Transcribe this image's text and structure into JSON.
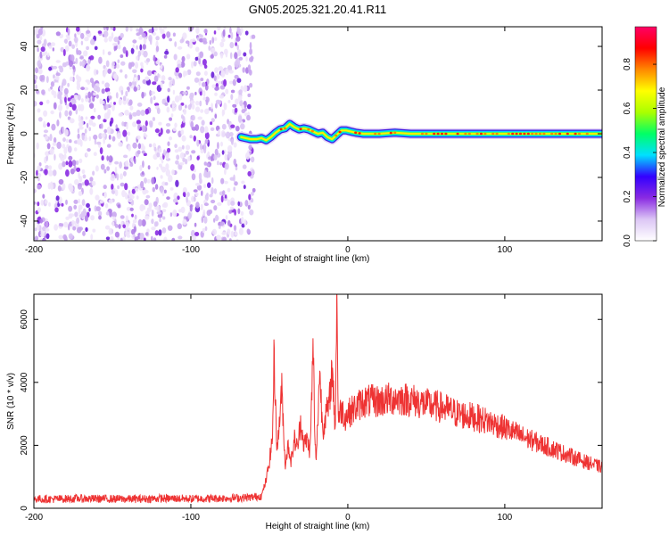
{
  "title": "GN05.2025.321.20.41.R11",
  "chart_data": [
    {
      "type": "heatmap",
      "xlabel": "Height of straight line (km)",
      "ylabel": "Frequency (Hz)",
      "xlim": [
        -200,
        162
      ],
      "ylim": [
        -49,
        49
      ],
      "x_ticks": [
        -200,
        -100,
        0,
        100
      ],
      "y_ticks": [
        -40,
        -20,
        0,
        20,
        40
      ],
      "noise_region_x": [
        -200,
        -63
      ],
      "signal_start_x": -68,
      "signal_track": {
        "x": [
          -68,
          -65,
          -62,
          -58,
          -55,
          -52,
          -49,
          -46,
          -43,
          -40,
          -37,
          -34,
          -31,
          -28,
          -25,
          -22,
          -19,
          -16,
          -13,
          -10,
          -7,
          -4,
          -1,
          2,
          5,
          10,
          20,
          30,
          40,
          60,
          80,
          100,
          120,
          140,
          162
        ],
        "y": [
          -1.5,
          -2,
          -2.5,
          -2.5,
          -2,
          -3,
          -1.5,
          0.5,
          2,
          2.5,
          4.5,
          3,
          2,
          2.5,
          2,
          1,
          0,
          0.5,
          -1.5,
          -2.5,
          -0.5,
          1.5,
          1.5,
          1,
          0.5,
          0,
          0,
          0.5,
          0,
          0,
          0,
          0,
          0,
          0,
          0
        ]
      },
      "colorbar": {
        "label": "Normalized spectral amplitude",
        "range": [
          0,
          0.97
        ],
        "ticks": [
          0.0,
          0.2,
          0.4,
          0.6,
          0.8
        ],
        "tick_labels": [
          "0.0",
          "0.2",
          "0.4",
          "0.6",
          "0.8"
        ],
        "colors": [
          "#ffffff",
          "#dcc6f5",
          "#8a2be2",
          "#3300ff",
          "#00e0ff",
          "#00ff66",
          "#aaff00",
          "#ffff00",
          "#ff8800",
          "#ff0000",
          "#ff0066"
        ]
      },
      "grid": false
    },
    {
      "type": "line",
      "xlabel": "Height of straight line (km)",
      "ylabel": "SNR (10 * v/v)",
      "xlim": [
        -200,
        162
      ],
      "ylim": [
        0,
        6800
      ],
      "x_ticks": [
        -200,
        -100,
        0,
        100
      ],
      "y_ticks": [
        0,
        2000,
        4000,
        6000
      ],
      "line_color": "#ee3333",
      "series": [
        {
          "x": [
            -200,
            -190,
            -180,
            -170,
            -160,
            -150,
            -140,
            -130,
            -120,
            -110,
            -100,
            -90,
            -80,
            -70,
            -60,
            -55,
            -52,
            -50,
            -48,
            -47,
            -45,
            -44,
            -42,
            -40,
            -38,
            -36,
            -34,
            -32,
            -30,
            -28,
            -26,
            -24,
            -22,
            -21,
            -20,
            -18,
            -16,
            -14,
            -12,
            -10,
            -8,
            -7,
            -6,
            -5,
            -4,
            -2,
            0,
            5,
            10,
            20,
            30,
            40,
            50,
            60,
            70,
            80,
            90,
            100,
            110,
            120,
            130,
            140,
            150,
            162
          ],
          "y": [
            300,
            290,
            300,
            310,
            300,
            300,
            290,
            300,
            310,
            310,
            300,
            310,
            320,
            330,
            350,
            400,
            900,
            1500,
            2200,
            4800,
            1800,
            2500,
            3800,
            1400,
            2000,
            1500,
            2200,
            1900,
            2800,
            2000,
            2200,
            1800,
            5300,
            2000,
            1600,
            4400,
            2500,
            3000,
            3200,
            4500,
            2500,
            6700,
            2800,
            3000,
            3200,
            2900,
            3000,
            3200,
            3400,
            3400,
            3500,
            3450,
            3300,
            3200,
            3000,
            2900,
            2750,
            2550,
            2300,
            2100,
            1900,
            1700,
            1500,
            1300
          ]
        }
      ],
      "grid": false
    }
  ]
}
